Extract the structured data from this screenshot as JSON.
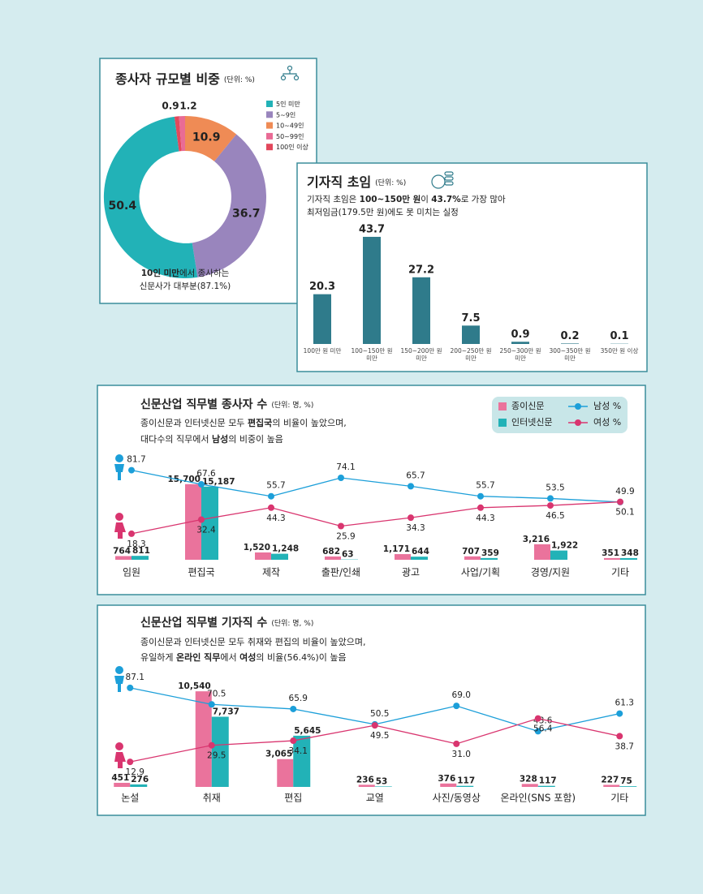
{
  "chart_data": [
    {
      "type": "pie",
      "title": "종사자 규모별 비중",
      "unit": "(단위: %)",
      "categories": [
        "5인 미만",
        "5~9인",
        "10~49인",
        "50~99인",
        "100인 이상"
      ],
      "values": [
        50.4,
        36.7,
        10.9,
        1.2,
        0.9
      ],
      "colors": [
        "#22b2b7",
        "#9985bd",
        "#ef8b55",
        "#e96b95",
        "#e2485c"
      ],
      "note": [
        [
          {
            "text": "10인 미만",
            "bold": true
          },
          {
            "text": "에서 종사하는"
          }
        ],
        [
          {
            "text": "신문사가 대부분(87.1%)"
          }
        ]
      ]
    },
    {
      "type": "bar",
      "title": "기자직 초임",
      "unit": "(단위: %)",
      "subtitle": [
        [
          {
            "text": "기자직 초임은 "
          },
          {
            "text": "100~150만 원",
            "bold": true
          },
          {
            "text": "이 "
          },
          {
            "text": "43.7%",
            "bold": true
          },
          {
            "text": "로 가장 많아"
          }
        ],
        [
          {
            "text": "최저임금(179.5만 원)에도 못 미치는 실정"
          }
        ]
      ],
      "categories": [
        "100만 원 미만",
        "100~150만 원 미만",
        "150~200만 원 미만",
        "200~250만 원 미만",
        "250~300만 원 미만",
        "300~350만 원 미만",
        "350만 원 이상"
      ],
      "values": [
        20.3,
        43.7,
        27.2,
        7.5,
        0.9,
        0.2,
        0.1
      ],
      "color": "#2f7b8b",
      "ylim": [
        0,
        46
      ]
    },
    {
      "type": "combo",
      "title": "신문산업 직무별 종사자 수",
      "unit": "(단위: 명, %)",
      "subtitle": [
        [
          {
            "text": "종이신문과 인터넷신문 모두 "
          },
          {
            "text": "편집국",
            "bold": true
          },
          {
            "text": "의 비율이 높았으며,"
          }
        ],
        [
          {
            "text": "대다수의 직무에서 "
          },
          {
            "text": "남성",
            "bold": true
          },
          {
            "text": "의 비중이 높음"
          }
        ]
      ],
      "categories": [
        "임원",
        "편집국",
        "제작",
        "출판/인쇄",
        "광고",
        "사업/기획",
        "경영/지원",
        "기타"
      ],
      "series": [
        {
          "name": "종이신문",
          "type": "bar",
          "color": "#ea739c",
          "values": [
            764,
            15700,
            1520,
            682,
            1171,
            707,
            3216,
            351
          ],
          "value_labels": [
            "764",
            "15,700",
            "1,520",
            "682",
            "1,171",
            "707",
            "3,216",
            "351"
          ]
        },
        {
          "name": "인터넷신문",
          "type": "bar",
          "color": "#22b2b7",
          "values": [
            811,
            15187,
            1248,
            63,
            644,
            359,
            1922,
            348
          ],
          "value_labels": [
            "811",
            "15,187",
            "1,248",
            "63",
            "644",
            "359",
            "1,922",
            "348"
          ]
        },
        {
          "name": "남성 %",
          "type": "line",
          "axis": "y2",
          "color": "#1c9fd9",
          "values": [
            81.7,
            67.6,
            55.7,
            74.1,
            65.7,
            55.7,
            53.5,
            49.9
          ]
        },
        {
          "name": "여성 %",
          "type": "line",
          "axis": "y2",
          "color": "#d9356f",
          "values": [
            18.3,
            32.4,
            44.3,
            25.9,
            34.3,
            44.3,
            46.5,
            50.1
          ]
        }
      ],
      "ylim": [
        0,
        16000
      ],
      "y2lim": [
        0,
        100
      ],
      "legend": true
    },
    {
      "type": "combo",
      "title": "신문산업 직무별 기자직 수",
      "unit": "(단위: 명, %)",
      "subtitle": [
        [
          {
            "text": "종이신문과 인터넷신문 모두 취재와 편집의 비율이 높았으며,"
          }
        ],
        [
          {
            "text": "유일하게 "
          },
          {
            "text": "온라인 직무",
            "bold": true
          },
          {
            "text": "에서 "
          },
          {
            "text": "여성",
            "bold": true
          },
          {
            "text": "의 비율(56.4%)이 높음"
          }
        ]
      ],
      "categories": [
        "논설",
        "취재",
        "편집",
        "교열",
        "사진/동영상",
        "온라인(SNS 포함)",
        "기타"
      ],
      "series": [
        {
          "type": "bar",
          "color": "#ea739c",
          "values": [
            451,
            10540,
            3065,
            236,
            376,
            328,
            227
          ],
          "value_labels": [
            "451",
            "10,540",
            "3,065",
            "236",
            "376",
            "328",
            "227"
          ]
        },
        {
          "type": "bar",
          "color": "#22b2b7",
          "values": [
            276,
            7737,
            5645,
            53,
            117,
            117,
            75
          ],
          "value_labels": [
            "276",
            "7,737",
            "5,645",
            "53",
            "117",
            "117",
            "75"
          ]
        },
        {
          "type": "line",
          "axis": "y2",
          "color": "#1c9fd9",
          "values": [
            87.1,
            70.5,
            65.9,
            50.5,
            69.0,
            43.6,
            61.3
          ],
          "value_labels": [
            "87.1",
            "70.5",
            "65.9",
            "50.5",
            "69.0",
            "43.6",
            "61.3"
          ]
        },
        {
          "type": "line",
          "axis": "y2",
          "color": "#d9356f",
          "values": [
            12.9,
            29.5,
            34.1,
            49.5,
            31.0,
            56.4,
            38.7
          ],
          "value_labels": [
            "12.9",
            "29.5",
            "34.1",
            "49.5",
            "31.0",
            "56.4",
            "38.7"
          ]
        }
      ],
      "ylim": [
        0,
        11000
      ],
      "y2lim": [
        0,
        100
      ],
      "legend": false
    }
  ]
}
